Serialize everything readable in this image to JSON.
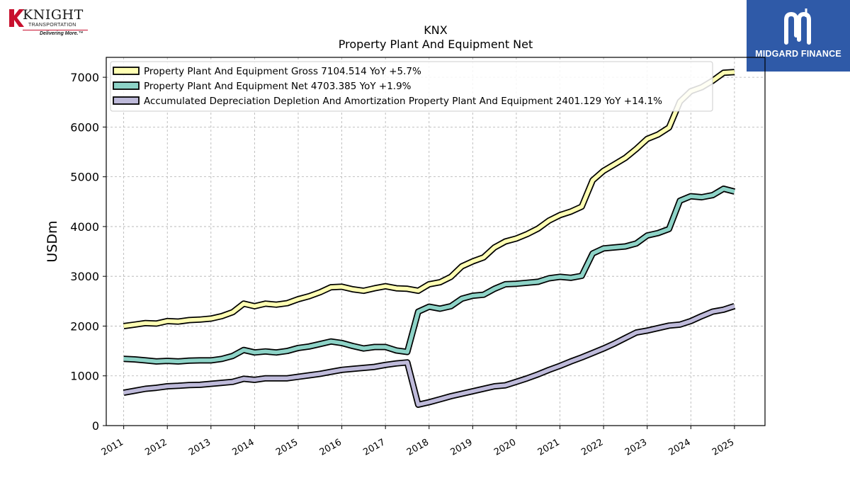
{
  "header": {
    "logo_left": {
      "brand": "KNIGHT",
      "subtitle": "TRANSPORTATION",
      "tagline": "Delivering More.™"
    },
    "logo_right": {
      "name": "MIDGARD FINANCE"
    }
  },
  "chart_data": {
    "type": "line",
    "title": "KNX",
    "subtitle": "Property Plant And Equipment Net",
    "xlabel": "",
    "ylabel": "USDm",
    "ylim": [
      0,
      7400
    ],
    "yticks": [
      0,
      1000,
      2000,
      3000,
      4000,
      5000,
      6000,
      7000
    ],
    "xlim": [
      2010.6,
      2025.7
    ],
    "xticks": [
      "2011",
      "2012",
      "2013",
      "2014",
      "2015",
      "2016",
      "2017",
      "2018",
      "2019",
      "2020",
      "2021",
      "2022",
      "2023",
      "2024",
      "2025"
    ],
    "grid": true,
    "legend_position": "top-left",
    "x": [
      2011.0,
      2011.25,
      2011.5,
      2011.75,
      2012.0,
      2012.25,
      2012.5,
      2012.75,
      2013.0,
      2013.25,
      2013.5,
      2013.75,
      2014.0,
      2014.25,
      2014.5,
      2014.75,
      2015.0,
      2015.25,
      2015.5,
      2015.75,
      2016.0,
      2016.25,
      2016.5,
      2016.75,
      2017.0,
      2017.25,
      2017.5,
      2017.75,
      2018.0,
      2018.25,
      2018.5,
      2018.75,
      2019.0,
      2019.25,
      2019.5,
      2019.75,
      2020.0,
      2020.25,
      2020.5,
      2020.75,
      2021.0,
      2021.25,
      2021.5,
      2021.75,
      2022.0,
      2022.25,
      2022.5,
      2022.75,
      2023.0,
      2023.25,
      2023.5,
      2023.75,
      2024.0,
      2024.25,
      2024.5,
      2024.75,
      2025.0
    ],
    "series": [
      {
        "name": "Property Plant And Equipment Gross",
        "legend": "Property Plant And Equipment Gross  7104.514 YoY +5.7%",
        "color": "#ffffb3",
        "values": [
          2000,
          2030,
          2060,
          2050,
          2100,
          2090,
          2120,
          2130,
          2150,
          2200,
          2280,
          2450,
          2400,
          2450,
          2430,
          2460,
          2540,
          2600,
          2680,
          2780,
          2790,
          2740,
          2710,
          2760,
          2800,
          2760,
          2750,
          2710,
          2840,
          2880,
          2990,
          3200,
          3300,
          3380,
          3580,
          3700,
          3760,
          3850,
          3960,
          4120,
          4230,
          4300,
          4400,
          4930,
          5120,
          5250,
          5380,
          5560,
          5760,
          5850,
          5990,
          6510,
          6720,
          6800,
          6930,
          7090,
          7105
        ]
      },
      {
        "name": "Property Plant And Equipment Net",
        "legend": "Property Plant And Equipment Net  4703.385 YoY +1.9%",
        "color": "#8dd3c7",
        "values": [
          1340,
          1330,
          1310,
          1290,
          1300,
          1290,
          1305,
          1310,
          1310,
          1340,
          1400,
          1520,
          1470,
          1490,
          1470,
          1500,
          1560,
          1590,
          1640,
          1690,
          1660,
          1600,
          1550,
          1580,
          1580,
          1510,
          1480,
          2290,
          2390,
          2350,
          2400,
          2550,
          2610,
          2630,
          2750,
          2840,
          2850,
          2870,
          2890,
          2960,
          2990,
          2970,
          3010,
          3460,
          3560,
          3580,
          3600,
          3660,
          3820,
          3870,
          3950,
          4520,
          4610,
          4590,
          4630,
          4760,
          4703
        ]
      },
      {
        "name": "Accumulated Depreciation Depletion And Amortization Property Plant And Equipment",
        "legend": "Accumulated Depreciation Depletion And Amortization Property Plant And Equipment  2401.129 YoY +14.1%",
        "color": "#bebada",
        "values": [
          660,
          700,
          740,
          760,
          790,
          800,
          815,
          820,
          840,
          860,
          880,
          940,
          920,
          950,
          950,
          950,
          980,
          1010,
          1040,
          1080,
          1120,
          1140,
          1160,
          1180,
          1220,
          1250,
          1270,
          420,
          470,
          530,
          590,
          640,
          690,
          740,
          790,
          810,
          880,
          950,
          1030,
          1120,
          1200,
          1290,
          1370,
          1460,
          1550,
          1650,
          1760,
          1870,
          1910,
          1960,
          2010,
          2030,
          2100,
          2200,
          2290,
          2330,
          2401
        ]
      }
    ]
  }
}
